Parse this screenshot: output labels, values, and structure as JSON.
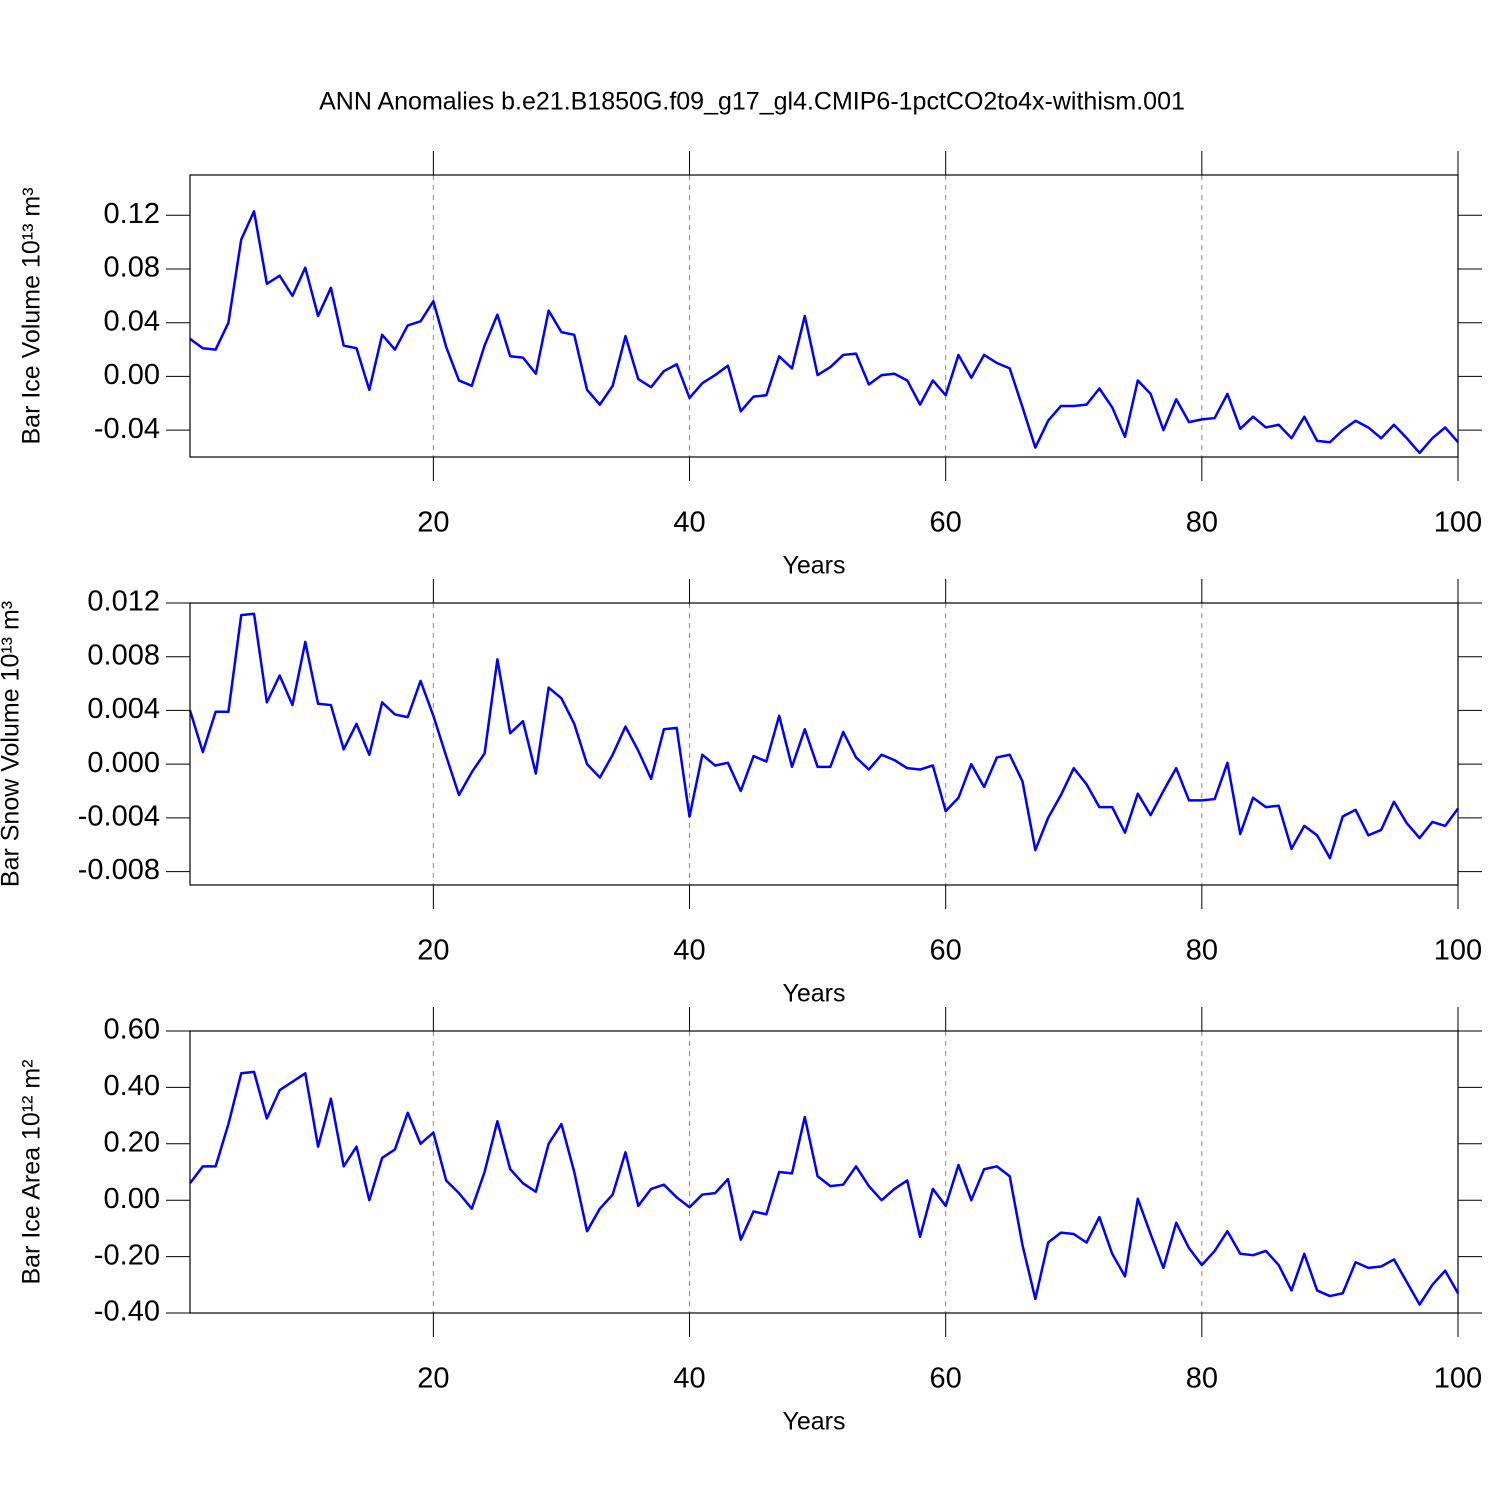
{
  "chart_data": [
    {
      "type": "line",
      "title": "ANN Anomalies b.e21.B1850G.f09_g17_gl4.CMIP6-1pctCO2to4x-withism.001",
      "x_label": "Years",
      "y_label": "Bar Ice Volume 10¹³ m³",
      "color": "#0000ff",
      "grid": true,
      "xlim": [
        1,
        100
      ],
      "xticks": [
        20,
        40,
        60,
        80,
        100
      ],
      "ylim": [
        -0.06,
        0.15
      ],
      "yticks": [
        {
          "value": -0.04,
          "label": "-0.04"
        },
        {
          "value": 0,
          "label": "0.00"
        },
        0.04,
        0.08,
        0.12
      ],
      "x": [
        1,
        2,
        3,
        4,
        5,
        6,
        7,
        8,
        9,
        10,
        11,
        12,
        13,
        14,
        15,
        16,
        17,
        18,
        19,
        20,
        21,
        22,
        23,
        24,
        25,
        26,
        27,
        28,
        29,
        30,
        31,
        32,
        33,
        34,
        35,
        36,
        37,
        38,
        39,
        40,
        41,
        42,
        43,
        44,
        45,
        46,
        47,
        48,
        49,
        50,
        51,
        52,
        53,
        54,
        55,
        56,
        57,
        58,
        59,
        60,
        61,
        62,
        63,
        64,
        65,
        66,
        67,
        68,
        69,
        70,
        71,
        72,
        73,
        74,
        75,
        76,
        77,
        78,
        79,
        80,
        81,
        82,
        83,
        84,
        85,
        86,
        87,
        88,
        89,
        90,
        91,
        92,
        93,
        94,
        95,
        96,
        97,
        98,
        99,
        100
      ],
      "values": [
        0.028,
        0.021,
        0.02,
        0.04,
        0.102,
        0.123,
        0.069,
        0.075,
        0.06,
        0.081,
        0.045,
        0.066,
        0.023,
        0.021,
        -0.01,
        0.031,
        0.02,
        0.038,
        0.041,
        0.056,
        0.022,
        -0.003,
        -0.007,
        0.023,
        0.046,
        0.015,
        0.014,
        0.002,
        0.049,
        0.033,
        0.031,
        -0.01,
        -0.021,
        -0.007,
        0.03,
        -0.002,
        -0.008,
        0.004,
        0.009,
        -0.016,
        -0.005,
        0.001,
        0.008,
        -0.026,
        -0.015,
        -0.014,
        0.015,
        0.006,
        0.045,
        0.001,
        0.007,
        0.016,
        0.017,
        -0.006,
        0.001,
        0.002,
        -0.003,
        -0.021,
        -0.003,
        -0.014,
        0.016,
        -0.001,
        0.016,
        0.01,
        0.006,
        -0.023,
        -0.053,
        -0.033,
        -0.022,
        -0.022,
        -0.021,
        -0.009,
        -0.023,
        -0.045,
        -0.003,
        -0.013,
        -0.04,
        -0.017,
        -0.034,
        -0.032,
        -0.031,
        -0.013,
        -0.039,
        -0.03,
        -0.038,
        -0.036,
        -0.046,
        -0.03,
        -0.048,
        -0.049,
        -0.04,
        -0.033,
        -0.038,
        -0.046,
        -0.036,
        -0.046,
        -0.057,
        -0.046,
        -0.038,
        -0.049
      ]
    },
    {
      "type": "line",
      "x_label": "Years",
      "y_label": "Bar Snow Volume 10¹³ m³",
      "color": "#0000ff",
      "grid": true,
      "xlim": [
        1,
        100
      ],
      "xticks": [
        20,
        40,
        60,
        80,
        100
      ],
      "ylim": [
        -0.009,
        0.012
      ],
      "yticks": [
        -0.008,
        -0.004,
        {
          "value": 0,
          "label": "0.000"
        },
        0.004,
        0.008,
        0.012
      ],
      "x": [
        1,
        2,
        3,
        4,
        5,
        6,
        7,
        8,
        9,
        10,
        11,
        12,
        13,
        14,
        15,
        16,
        17,
        18,
        19,
        20,
        21,
        22,
        23,
        24,
        25,
        26,
        27,
        28,
        29,
        30,
        31,
        32,
        33,
        34,
        35,
        36,
        37,
        38,
        39,
        40,
        41,
        42,
        43,
        44,
        45,
        46,
        47,
        48,
        49,
        50,
        51,
        52,
        53,
        54,
        55,
        56,
        57,
        58,
        59,
        60,
        61,
        62,
        63,
        64,
        65,
        66,
        67,
        68,
        69,
        70,
        71,
        72,
        73,
        74,
        75,
        76,
        77,
        78,
        79,
        80,
        81,
        82,
        83,
        84,
        85,
        86,
        87,
        88,
        89,
        90,
        91,
        92,
        93,
        94,
        95,
        96,
        97,
        98,
        99,
        100
      ],
      "values": [
        0.004,
        0.0009,
        0.0039,
        0.0039,
        0.0111,
        0.0112,
        0.0046,
        0.0066,
        0.0044,
        0.0091,
        0.0045,
        0.0044,
        0.0011,
        0.003,
        0.0007,
        0.0046,
        0.0037,
        0.0035,
        0.0062,
        0.0036,
        0.0006,
        -0.0023,
        -0.0006,
        0.0008,
        0.0078,
        0.0023,
        0.0032,
        -0.0007,
        0.0057,
        0.0049,
        0.003,
        0.0,
        -0.001,
        0.0007,
        0.0028,
        0.001,
        -0.0011,
        0.0026,
        0.0027,
        -0.0039,
        0.0007,
        -0.0001,
        0.0001,
        -0.002,
        0.0006,
        0.0002,
        0.0036,
        -0.0002,
        0.0026,
        -0.0002,
        -0.0002,
        0.0024,
        0.0005,
        -0.0004,
        0.0007,
        0.0003,
        -0.0003,
        -0.0004,
        -0.0001,
        -0.0035,
        -0.0025,
        0.0,
        -0.0017,
        0.0005,
        0.0007,
        -0.0013,
        -0.0064,
        -0.004,
        -0.0023,
        -0.0003,
        -0.0015,
        -0.0032,
        -0.0032,
        -0.0051,
        -0.0022,
        -0.0038,
        -0.002,
        -0.0003,
        -0.0027,
        -0.0027,
        -0.0026,
        0.0001,
        -0.0052,
        -0.0025,
        -0.0032,
        -0.0031,
        -0.0063,
        -0.0046,
        -0.0053,
        -0.007,
        -0.0039,
        -0.0034,
        -0.0053,
        -0.0049,
        -0.0028,
        -0.0044,
        -0.0055,
        -0.0043,
        -0.0046,
        -0.0033
      ]
    },
    {
      "type": "line",
      "x_label": "Years",
      "y_label": "Bar Ice Area 10¹² m²",
      "color": "#0000ff",
      "grid": true,
      "xlim": [
        1,
        100
      ],
      "xticks": [
        20,
        40,
        60,
        80,
        100
      ],
      "ylim": [
        -0.4,
        0.6
      ],
      "yticks": [
        {
          "value": -0.4,
          "label": "-0.40"
        },
        {
          "value": -0.2,
          "label": "-0.20"
        },
        {
          "value": 0,
          "label": "0.00"
        },
        {
          "value": 0.2,
          "label": "0.20"
        },
        {
          "value": 0.4,
          "label": "0.40"
        },
        {
          "value": 0.6,
          "label": "0.60"
        }
      ],
      "x": [
        1,
        2,
        3,
        4,
        5,
        6,
        7,
        8,
        9,
        10,
        11,
        12,
        13,
        14,
        15,
        16,
        17,
        18,
        19,
        20,
        21,
        22,
        23,
        24,
        25,
        26,
        27,
        28,
        29,
        30,
        31,
        32,
        33,
        34,
        35,
        36,
        37,
        38,
        39,
        40,
        41,
        42,
        43,
        44,
        45,
        46,
        47,
        48,
        49,
        50,
        51,
        52,
        53,
        54,
        55,
        56,
        57,
        58,
        59,
        60,
        61,
        62,
        63,
        64,
        65,
        66,
        67,
        68,
        69,
        70,
        71,
        72,
        73,
        74,
        75,
        76,
        77,
        78,
        79,
        80,
        81,
        82,
        83,
        84,
        85,
        86,
        87,
        88,
        89,
        90,
        91,
        92,
        93,
        94,
        95,
        96,
        97,
        98,
        99,
        100
      ],
      "values": [
        0.06,
        0.12,
        0.12,
        0.27,
        0.45,
        0.455,
        0.29,
        0.39,
        0.42,
        0.45,
        0.19,
        0.36,
        0.12,
        0.19,
        0.0,
        0.15,
        0.18,
        0.31,
        0.2,
        0.24,
        0.07,
        0.025,
        -0.03,
        0.1,
        0.28,
        0.11,
        0.06,
        0.03,
        0.2,
        0.27,
        0.1,
        -0.11,
        -0.03,
        0.02,
        0.17,
        -0.02,
        0.04,
        0.055,
        0.01,
        -0.025,
        0.02,
        0.025,
        0.075,
        -0.14,
        -0.04,
        -0.05,
        0.1,
        0.095,
        0.295,
        0.085,
        0.05,
        0.055,
        0.12,
        0.05,
        0.0,
        0.04,
        0.07,
        -0.13,
        0.04,
        -0.02,
        0.125,
        0.0,
        0.11,
        0.12,
        0.085,
        -0.16,
        -0.35,
        -0.15,
        -0.115,
        -0.12,
        -0.15,
        -0.06,
        -0.19,
        -0.27,
        0.005,
        -0.12,
        -0.24,
        -0.08,
        -0.17,
        -0.23,
        -0.18,
        -0.11,
        -0.19,
        -0.195,
        -0.18,
        -0.23,
        -0.32,
        -0.19,
        -0.32,
        -0.34,
        -0.33,
        -0.22,
        -0.24,
        -0.235,
        -0.21,
        -0.29,
        -0.37,
        -0.3,
        -0.25,
        -0.33
      ]
    }
  ]
}
